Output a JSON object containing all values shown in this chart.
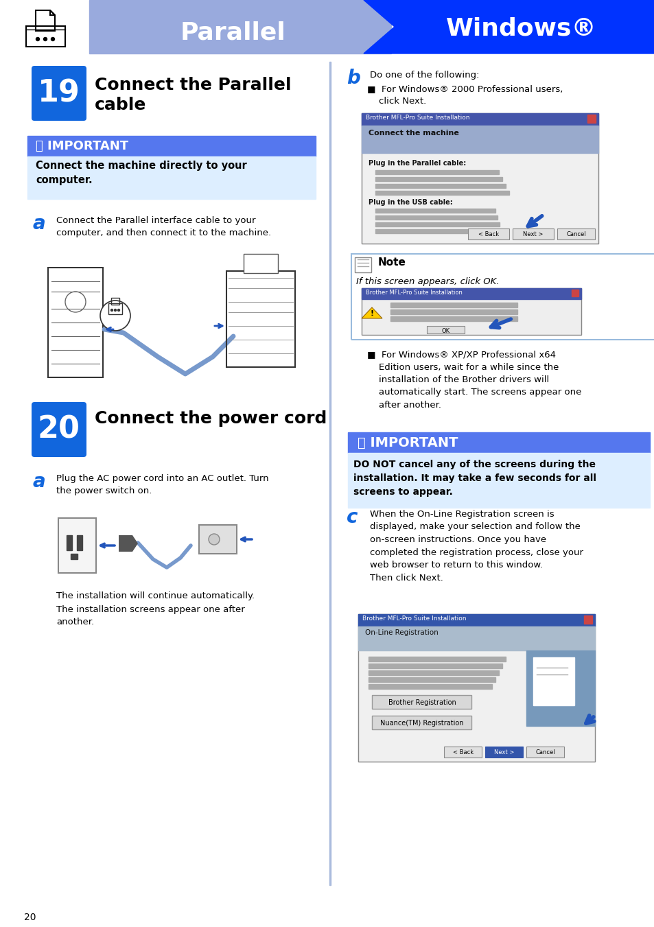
{
  "bg_color": "#ffffff",
  "header_parallel_bg": "#99aadd",
  "header_windows_bg": "#0033ff",
  "header_parallel_text": "Parallel",
  "header_windows_text": "Windows®",
  "step19_num": "19",
  "step19_title": "Connect the Parallel\ncable",
  "step20_num": "20",
  "step20_title": "Connect the power cord",
  "important1_title": "❗ IMPORTANT",
  "important1_title_bg": "#5577ee",
  "important1_body": "Connect the machine directly to your\ncomputer.",
  "important1_body_bg": "#ddeeff",
  "important2_title": "❗ IMPORTANT",
  "important2_title_bg": "#5577ee",
  "important2_body": "DO NOT cancel any of the screens during the\ninstallation. It may take a few seconds for all\nscreens to appear.",
  "important2_body_bg": "#ddeeff",
  "step_num_bg": "#1166dd",
  "step_num_color": "#ffffff",
  "label_color": "#1166dd",
  "page_num": "20",
  "text_color": "#000000",
  "divider_color": "#aabbdd",
  "note_border": "#99bbdd",
  "ss_titlebar": "#4455aa",
  "ss_bg": "#e8eaf5",
  "ss_bg2": "#d8daf0"
}
